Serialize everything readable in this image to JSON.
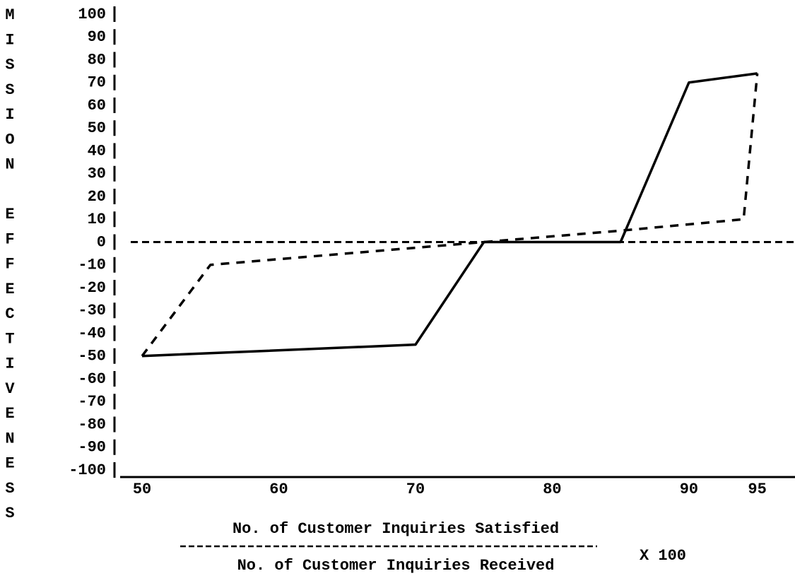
{
  "chart_data": {
    "type": "line",
    "ylabel": "MISSION EFFECTIVENESS",
    "xlabel_numerator": "No. of Customer Inquiries Satisfied",
    "xlabel_denominator": "No. of Customer Inquiries Received",
    "xlabel_factor": "X 100",
    "series": [
      {
        "style": "solid",
        "color": "#000000",
        "x": [
          50,
          70,
          75,
          85,
          90,
          95
        ],
        "values": [
          -50,
          -45,
          0,
          0,
          70,
          74
        ]
      },
      {
        "style": "dashed",
        "color": "#000000",
        "x": [
          50,
          55,
          75,
          85,
          94,
          95
        ],
        "values": [
          -50,
          -10,
          0,
          5,
          10,
          74
        ]
      }
    ],
    "xlim": [
      48.5,
      97.5
    ],
    "xticks": [
      50,
      60,
      70,
      80,
      90,
      95
    ],
    "ylim": [
      -100,
      100
    ],
    "yticks": [
      100,
      90,
      80,
      70,
      60,
      50,
      40,
      30,
      20,
      10,
      0,
      -10,
      -20,
      -30,
      -40,
      -50,
      -60,
      -70,
      -80,
      -90,
      -100
    ],
    "zero_line": true
  }
}
